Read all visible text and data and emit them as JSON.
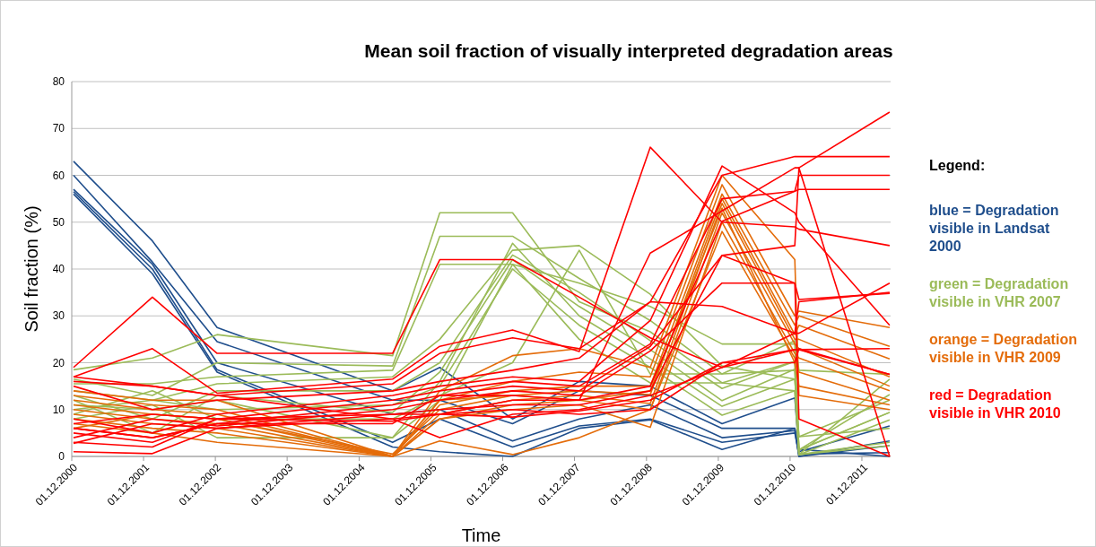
{
  "chart_data": {
    "type": "line",
    "title": "Mean soil fraction of visually interpreted degradation areas",
    "xlabel": "Time",
    "ylabel": "Soil fraction (%)",
    "x": [
      "2000-12-10",
      "2002-01-15",
      "2002-12-10",
      "2005-05-20",
      "2006-01-15",
      "2007-01-20",
      "2007-12-25",
      "2008-12-20",
      "2009-12-20",
      "2010-12-25",
      "2011-01-15",
      "2012-04-20"
    ],
    "xlim": [
      "2000-12-01",
      "2012-04-25"
    ],
    "xticks": [
      {
        "value": "2000-12-01",
        "label": "01.12.2000"
      },
      {
        "value": "2001-12-01",
        "label": "01.12.2001"
      },
      {
        "value": "2002-12-01",
        "label": "01.12.2002"
      },
      {
        "value": "2003-12-01",
        "label": "01.12.2003"
      },
      {
        "value": "2004-12-01",
        "label": "01.12.2004"
      },
      {
        "value": "2005-12-01",
        "label": "01.12.2005"
      },
      {
        "value": "2006-12-01",
        "label": "01.12.2006"
      },
      {
        "value": "2007-12-01",
        "label": "01.12.2007"
      },
      {
        "value": "2008-12-01",
        "label": "01.12.2008"
      },
      {
        "value": "2009-12-01",
        "label": "01.12.2009"
      },
      {
        "value": "2010-12-01",
        "label": "01.12.2010"
      },
      {
        "value": "2011-12-01",
        "label": "01.12.2011"
      }
    ],
    "ylim": [
      0,
      80
    ],
    "yticks": [
      0,
      10,
      20,
      30,
      40,
      50,
      60,
      70,
      80
    ],
    "grid": "y",
    "marker": "none",
    "line_style": "solid",
    "series": [
      {
        "color": "#1f4e8c",
        "values": [
          63,
          46,
          27.5,
          14,
          19,
          8,
          16,
          15,
          7,
          12.5,
          1,
          6.5
        ]
      },
      {
        "color": "#1f4e8c",
        "values": [
          60,
          41.5,
          24.5,
          12,
          12,
          7,
          14,
          13,
          6,
          6,
          0,
          3.3
        ]
      },
      {
        "color": "#1f4e8c",
        "values": [
          57,
          41,
          20,
          9,
          10,
          3.3,
          8,
          11,
          4,
          5.5,
          0,
          2.3
        ]
      },
      {
        "color": "#1f4e8c",
        "values": [
          56.5,
          40,
          18.5,
          3,
          8,
          2,
          6.5,
          8,
          3,
          5,
          0.5,
          0.8
        ]
      },
      {
        "color": "#1f4e8c",
        "values": [
          56,
          39,
          18,
          2,
          1,
          0,
          6,
          7.8,
          1.5,
          6,
          1.5,
          0
        ]
      },
      {
        "color": "#9bbb59",
        "values": [
          18.5,
          21,
          26,
          21.5,
          52,
          52,
          33,
          26.6,
          15.7,
          20.3,
          0.4,
          16.5
        ]
      },
      {
        "color": "#9bbb59",
        "values": [
          16.5,
          13,
          20,
          19.3,
          47,
          47,
          38,
          29,
          17.6,
          24.7,
          18.4,
          17.5
        ]
      },
      {
        "color": "#9bbb59",
        "values": [
          15.5,
          15.5,
          17,
          18.4,
          41,
          41,
          37,
          32,
          24,
          24,
          1.4,
          13.2
        ]
      },
      {
        "color": "#9bbb59",
        "values": [
          14,
          12,
          15.5,
          17,
          25,
          44,
          45,
          34.6,
          19.3,
          16.5,
          4.2,
          12
        ]
      },
      {
        "color": "#9bbb59",
        "values": [
          13,
          8,
          14,
          14,
          20,
          43,
          35,
          24.7,
          14.5,
          20.3,
          1.4,
          9.4
        ]
      },
      {
        "color": "#9bbb59",
        "values": [
          12,
          5,
          13,
          9.4,
          18,
          42,
          32,
          22.8,
          11.9,
          18.6,
          0.4,
          7.8
        ]
      },
      {
        "color": "#9bbb59",
        "values": [
          11,
          10,
          12,
          4,
          16,
          45.5,
          30,
          20.8,
          10.7,
          16.5,
          4.2,
          6
        ]
      },
      {
        "color": "#9bbb59",
        "values": [
          10,
          12,
          10,
          11,
          15,
          40,
          28,
          19,
          8.8,
          14,
          0.4,
          2.3
        ]
      },
      {
        "color": "#9bbb59",
        "values": [
          9,
          14,
          8,
          8,
          13,
          20,
          44,
          17.6,
          17.6,
          18.4,
          1.4,
          9.4
        ]
      },
      {
        "color": "#9bbb59",
        "values": [
          8,
          11,
          4,
          4,
          12,
          41,
          25,
          15.7,
          15.7,
          14,
          0.4,
          3
        ]
      },
      {
        "color": "#e46c0a",
        "values": [
          14,
          12,
          12,
          0,
          14,
          21.5,
          23,
          19,
          60,
          42,
          13,
          10
        ]
      },
      {
        "color": "#e46c0a",
        "values": [
          13,
          11,
          10,
          0,
          12,
          16,
          18,
          17,
          58,
          30,
          31,
          27.5
        ]
      },
      {
        "color": "#e46c0a",
        "values": [
          12,
          10,
          9,
          0,
          11,
          14,
          15,
          15,
          56,
          28,
          30,
          23.5
        ]
      },
      {
        "color": "#e46c0a",
        "values": [
          11,
          9,
          8,
          0.5,
          10,
          13,
          14,
          13.2,
          55,
          26,
          28,
          20.8
        ]
      },
      {
        "color": "#e46c0a",
        "values": [
          10,
          8,
          7,
          0,
          9,
          12,
          13,
          11.3,
          54,
          25,
          25,
          17
        ]
      },
      {
        "color": "#e46c0a",
        "values": [
          9,
          7,
          6,
          0,
          8,
          11,
          12,
          10,
          52,
          24,
          23,
          15
        ]
      },
      {
        "color": "#e46c0a",
        "values": [
          8,
          6,
          5,
          0,
          8,
          10,
          11,
          6.2,
          50,
          22,
          21,
          14
        ]
      },
      {
        "color": "#e46c0a",
        "values": [
          7,
          5,
          3,
          0,
          3.3,
          0.4,
          4,
          10,
          48,
          21,
          18,
          12
        ]
      },
      {
        "color": "#e46c0a",
        "values": [
          6,
          9,
          8,
          0,
          12,
          13,
          12,
          14,
          53,
          20,
          15,
          11
        ]
      },
      {
        "color": "#ff0000",
        "values": [
          19,
          34,
          22,
          22,
          42,
          42,
          34,
          25.3,
          19,
          22.8,
          22.8,
          17.5
        ]
      },
      {
        "color": "#ff0000",
        "values": [
          17,
          23,
          13.5,
          16.5,
          23.5,
          27,
          22.4,
          66,
          50,
          49,
          48.5,
          45
        ]
      },
      {
        "color": "#ff0000",
        "values": [
          16,
          15,
          13,
          15.5,
          22,
          25.3,
          23,
          33,
          32,
          26.3,
          33,
          35
        ]
      },
      {
        "color": "#ff0000",
        "values": [
          15,
          10,
          12,
          14,
          16,
          18.4,
          21,
          33,
          60,
          64,
          64,
          64
        ]
      },
      {
        "color": "#ff0000",
        "values": [
          8,
          5,
          9,
          13,
          15,
          17,
          16,
          29,
          62,
          52,
          50,
          28
        ]
      },
      {
        "color": "#ff0000",
        "values": [
          7,
          9,
          8,
          12,
          14,
          16,
          15,
          24,
          55,
          56.6,
          57,
          57
        ]
      },
      {
        "color": "#ff0000",
        "values": [
          6,
          4,
          7,
          11,
          13,
          15,
          14,
          23.5,
          42.9,
          37,
          8,
          0
        ]
      },
      {
        "color": "#ff0000",
        "values": [
          4,
          8,
          6.5,
          10,
          12,
          14,
          13,
          22.5,
          37,
          37,
          33.5,
          34.8
        ]
      },
      {
        "color": "#ff0000",
        "values": [
          2.8,
          7,
          6,
          9,
          9,
          12,
          12,
          15,
          50.2,
          56.6,
          60,
          60
        ]
      },
      {
        "color": "#ff0000",
        "values": [
          1,
          0.6,
          6,
          8,
          4,
          9,
          10,
          13,
          19,
          26.3,
          26.3,
          37
        ]
      },
      {
        "color": "#ff0000",
        "values": [
          17,
          15,
          13,
          8,
          9,
          8.4,
          9.7,
          12,
          20,
          22.8,
          22.8,
          23
        ]
      },
      {
        "color": "#ff0000",
        "values": [
          6,
          4,
          7,
          7,
          13,
          13,
          12,
          43.4,
          52.4,
          61.6,
          61.6,
          73.5
        ]
      },
      {
        "color": "#ff0000",
        "values": [
          5,
          3,
          8,
          9,
          10,
          11,
          11,
          14,
          42.9,
          45,
          61.6,
          0
        ]
      },
      {
        "color": "#ff0000",
        "values": [
          3,
          2,
          8,
          7.5,
          9,
          10,
          9,
          10,
          20,
          20,
          23,
          17.5
        ]
      }
    ],
    "annotations": [
      "Legend:",
      "blue = Degradation visible in Landsat 2000",
      "green = Degradation visible in VHR  2007",
      "orange = Degradation visible in VHR 2009",
      "red = Degradation visible in VHR 2010"
    ]
  }
}
